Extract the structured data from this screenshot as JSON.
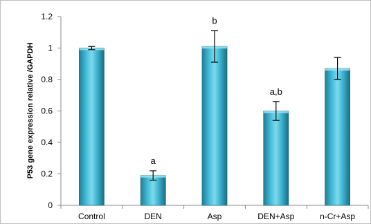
{
  "chart_data": {
    "type": "bar",
    "title": "",
    "xlabel": "",
    "ylabel": "P53 gene expression relative /GAPDH",
    "ylim": [
      0,
      1.2
    ],
    "yticks": [
      "0",
      "0.2",
      "0.4",
      "0.6",
      "0.8",
      "1",
      "1.2"
    ],
    "grid": false,
    "categories": [
      "Control",
      "DEN",
      "Asp",
      "DEN+Asp",
      "n-Cr+Asp"
    ],
    "values": [
      1.0,
      0.19,
      1.01,
      0.6,
      0.87
    ],
    "errors": [
      0.01,
      0.03,
      0.1,
      0.06,
      0.07
    ],
    "significance": [
      "",
      "a",
      "b",
      "a,b",
      ""
    ],
    "bar_color": "#3bb3cf",
    "bar_edge_color": "#1c6f85"
  }
}
